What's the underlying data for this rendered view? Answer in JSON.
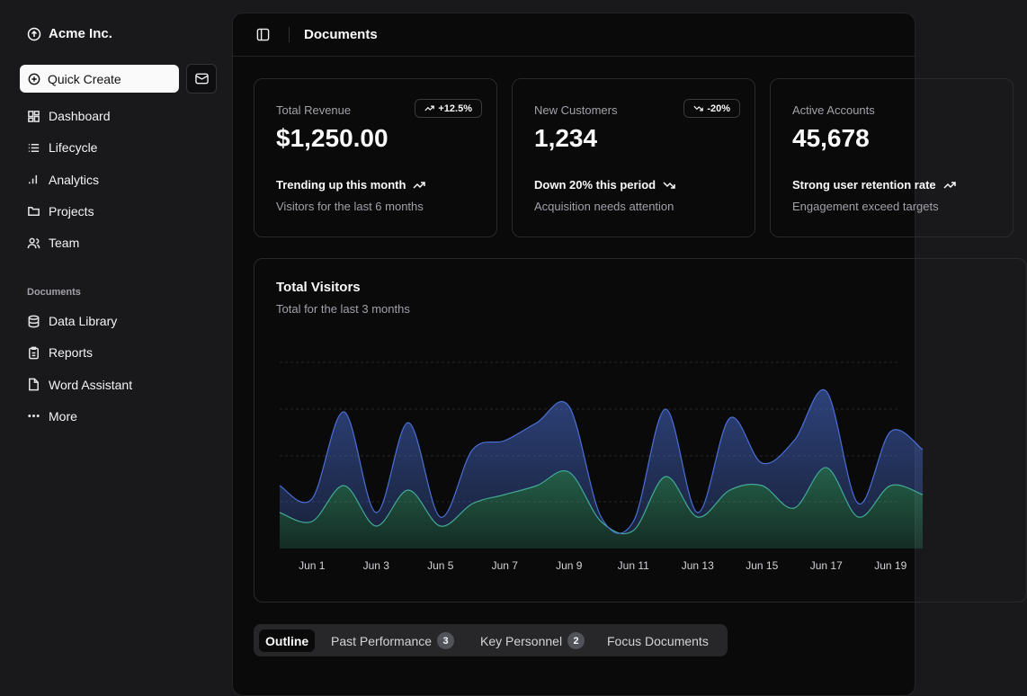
{
  "sidebar": {
    "brand": "Acme Inc.",
    "quick_create": "Quick Create",
    "nav": [
      "Dashboard",
      "Lifecycle",
      "Analytics",
      "Projects",
      "Team"
    ],
    "section": "Documents",
    "documents": [
      "Data Library",
      "Reports",
      "Word Assistant",
      "More"
    ]
  },
  "header": {
    "title": "Documents"
  },
  "cards": [
    {
      "label": "Total Revenue",
      "badge": "+12.5%",
      "value": "$1,250.00",
      "trend": "Trending up this month",
      "note": "Visitors for the last 6 months"
    },
    {
      "label": "New Customers",
      "badge": "-20%",
      "value": "1,234",
      "trend": "Down 20% this period",
      "note": "Acquisition needs attention"
    },
    {
      "label": "Active Accounts",
      "value": "45,678",
      "trend": "Strong user retention rate",
      "note": "Engagement exceed targets"
    }
  ],
  "chart_data": {
    "type": "area",
    "stacked": true,
    "title": "Total Visitors",
    "subtitle": "Total for the last 3 months",
    "categories": [
      null,
      "Jun 1",
      null,
      "Jun 3",
      null,
      "Jun 5",
      null,
      "Jun 7",
      null,
      "Jun 9",
      null,
      "Jun 11",
      null,
      "Jun 13",
      null,
      "Jun 15",
      null,
      "Jun 17",
      null,
      "Jun 19",
      null
    ],
    "series": [
      {
        "color": "#3fb58a",
        "values": [
          40,
          30,
          70,
          25,
          65,
          25,
          50,
          60,
          70,
          85,
          30,
          20,
          80,
          35,
          65,
          70,
          45,
          90,
          35,
          70,
          60
        ]
      },
      {
        "color": "#4a6fd6",
        "values": [
          30,
          25,
          82,
          15,
          75,
          10,
          60,
          60,
          70,
          73,
          5,
          10,
          75,
          5,
          80,
          25,
          75,
          85,
          15,
          60,
          50
        ]
      }
    ],
    "ylim": [
      0,
      207
    ]
  },
  "tabs": [
    {
      "label": "Outline"
    },
    {
      "label": "Past Performance",
      "count": 3
    },
    {
      "label": "Key Personnel",
      "count": 2
    },
    {
      "label": "Focus Documents"
    }
  ]
}
